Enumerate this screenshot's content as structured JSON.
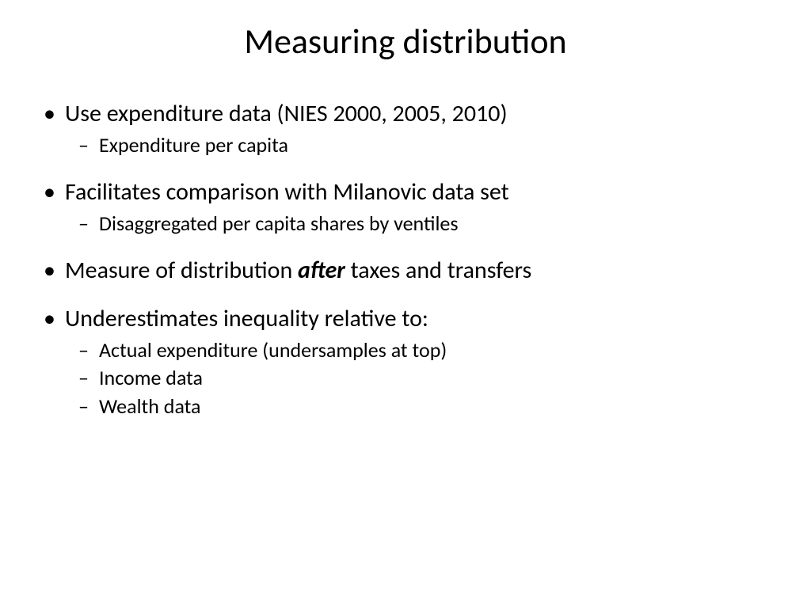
{
  "title": "Measuring distribution",
  "bullets": {
    "b1": "Use expenditure data (NIES 2000, 2005, 2010)",
    "b1_sub1": "Expenditure per capita",
    "b2": "Facilitates comparison with Milanovic data set",
    "b2_sub1": "Disaggregated per capita shares  by ventiles",
    "b3_pre": "Measure of distribution ",
    "b3_em": "after",
    "b3_post": " taxes and transfers",
    "b4": "Underestimates inequality relative to:",
    "b4_sub1": "Actual expenditure (undersamples at top)",
    "b4_sub2": " Income data",
    "b4_sub3": " Wealth data"
  },
  "styling": {
    "background_color": "#ffffff",
    "text_color": "#000000",
    "title_fontsize": 44,
    "level1_fontsize": 30,
    "level2_fontsize": 26,
    "font_family": "Calibri"
  }
}
